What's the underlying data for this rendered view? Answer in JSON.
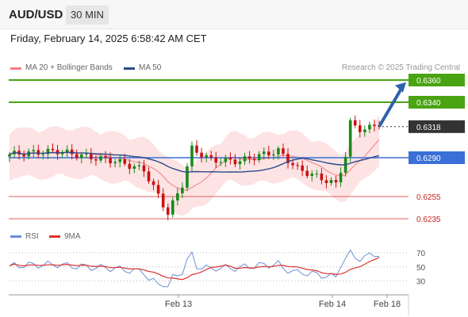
{
  "header": {
    "symbol": "AUD/USD",
    "timeframe": "30 MIN"
  },
  "datetime": "Friday, February 14, 2025 6:58:42 AM CET",
  "legend": {
    "bb_label": "MA 20 + Bollinger Bands",
    "ma50_label": "MA 50",
    "credit": "Research © 2025 Trading Central"
  },
  "rsi_legend": {
    "rsi_label": "RSI",
    "ma_label": "9MA"
  },
  "colors": {
    "bb": "#f08080",
    "bb_fill": "#fde3e3",
    "ma50": "#2b4a8a",
    "up": "#1a8a1a",
    "down": "#cc1111",
    "target": "#4aa313",
    "pivot": "#3b6fd8",
    "support": "#e06060",
    "current": "#333333",
    "rsi": "#6b8fd6",
    "rsi_ma": "#e03030",
    "arrow": "#2f62a8"
  },
  "chart_data": [
    {
      "type": "candlestick",
      "y_range": [
        0.6225,
        0.6375
      ],
      "last": 0.6318,
      "levels": [
        {
          "value": 0.636,
          "label": "0.6360",
          "kind": "target"
        },
        {
          "value": 0.634,
          "label": "0.6340",
          "kind": "target"
        },
        {
          "value": 0.6318,
          "label": "0.6318",
          "kind": "current"
        },
        {
          "value": 0.629,
          "label": "0.6290",
          "kind": "pivot"
        },
        {
          "value": 0.6255,
          "label": "0.6255",
          "kind": "support"
        },
        {
          "value": 0.6235,
          "label": "0.6235",
          "kind": "support"
        }
      ],
      "arrow": {
        "from": 0.6318,
        "to": 0.6358
      },
      "x_labels": [
        "Feb 13",
        "Feb 14",
        "Feb 18"
      ],
      "bars": 78
    },
    {
      "type": "line",
      "name": "RSI",
      "y_ticks": [
        70,
        50,
        30
      ],
      "y_range": [
        15,
        80
      ]
    }
  ]
}
